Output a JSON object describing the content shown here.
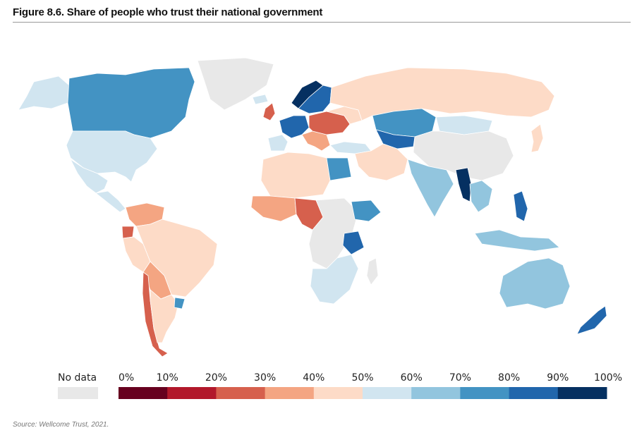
{
  "figure": {
    "title": "Figure 8.6. Share of people who trust their national government",
    "source": "Source: Wellcome Trust, 2021."
  },
  "map": {
    "subject": "Share of people who trust their national government, by country",
    "no_data_color": "#e8e8e8",
    "ocean_color": "#ffffff",
    "border_color": "#ffffff"
  },
  "legend": {
    "no_data_label": "No data",
    "tick_labels": [
      "0%",
      "10%",
      "20%",
      "30%",
      "40%",
      "50%",
      "60%",
      "70%",
      "80%",
      "90%",
      "100%"
    ],
    "bins": [
      {
        "range": "0-10%",
        "color": "#67001f"
      },
      {
        "range": "10-20%",
        "color": "#b2182b"
      },
      {
        "range": "20-30%",
        "color": "#d6604d"
      },
      {
        "range": "30-40%",
        "color": "#f4a582"
      },
      {
        "range": "40-50%",
        "color": "#fddbc7"
      },
      {
        "range": "50-60%",
        "color": "#d1e5f0"
      },
      {
        "range": "60-70%",
        "color": "#92c5de"
      },
      {
        "range": "70-80%",
        "color": "#4393c3"
      },
      {
        "range": "80-90%",
        "color": "#2166ac"
      },
      {
        "range": "90-100%",
        "color": "#053061"
      }
    ]
  },
  "regions": [
    {
      "id": "greenland",
      "bin": "none"
    },
    {
      "id": "canada",
      "bin": "70-80%"
    },
    {
      "id": "alaska",
      "bin": "50-60%"
    },
    {
      "id": "usa",
      "bin": "50-60%"
    },
    {
      "id": "mexico",
      "bin": "50-60%"
    },
    {
      "id": "central-america",
      "bin": "50-60%"
    },
    {
      "id": "venezuela-colombia",
      "bin": "30-40%"
    },
    {
      "id": "ecuador",
      "bin": "20-30%"
    },
    {
      "id": "brazil",
      "bin": "40-50%"
    },
    {
      "id": "peru",
      "bin": "40-50%"
    },
    {
      "id": "bolivia-paraguay",
      "bin": "30-40%"
    },
    {
      "id": "chile",
      "bin": "20-30%"
    },
    {
      "id": "argentina",
      "bin": "40-50%"
    },
    {
      "id": "uruguay",
      "bin": "70-80%"
    },
    {
      "id": "iceland",
      "bin": "50-60%"
    },
    {
      "id": "uk-ireland",
      "bin": "20-30%"
    },
    {
      "id": "norway",
      "bin": "90-100%"
    },
    {
      "id": "sweden-finland",
      "bin": "80-90%"
    },
    {
      "id": "western-europe",
      "bin": "80-90%"
    },
    {
      "id": "iberia",
      "bin": "50-60%"
    },
    {
      "id": "italy-balkans",
      "bin": "30-40%"
    },
    {
      "id": "eastern-europe",
      "bin": "20-30%"
    },
    {
      "id": "ukraine",
      "bin": "40-50%"
    },
    {
      "id": "russia",
      "bin": "40-50%"
    },
    {
      "id": "turkey",
      "bin": "50-60%"
    },
    {
      "id": "kazakhstan",
      "bin": "70-80%"
    },
    {
      "id": "uzbekistan-region",
      "bin": "80-90%"
    },
    {
      "id": "iran-arabia",
      "bin": "40-50%"
    },
    {
      "id": "mongolia",
      "bin": "50-60%"
    },
    {
      "id": "china",
      "bin": "none"
    },
    {
      "id": "japan",
      "bin": "40-50%"
    },
    {
      "id": "india",
      "bin": "60-70%"
    },
    {
      "id": "myanmar",
      "bin": "90-100%"
    },
    {
      "id": "thailand-vietnam",
      "bin": "60-70%"
    },
    {
      "id": "philippines",
      "bin": "80-90%"
    },
    {
      "id": "indonesia",
      "bin": "60-70%"
    },
    {
      "id": "australia",
      "bin": "60-70%"
    },
    {
      "id": "new-zealand",
      "bin": "80-90%"
    },
    {
      "id": "north-africa",
      "bin": "40-50%"
    },
    {
      "id": "egypt",
      "bin": "70-80%"
    },
    {
      "id": "west-africa",
      "bin": "30-40%"
    },
    {
      "id": "nigeria-cameroon",
      "bin": "20-30%"
    },
    {
      "id": "ethiopia",
      "bin": "70-80%"
    },
    {
      "id": "tanzania",
      "bin": "80-90%"
    },
    {
      "id": "southern-africa",
      "bin": "50-60%"
    },
    {
      "id": "central-africa",
      "bin": "none"
    }
  ]
}
